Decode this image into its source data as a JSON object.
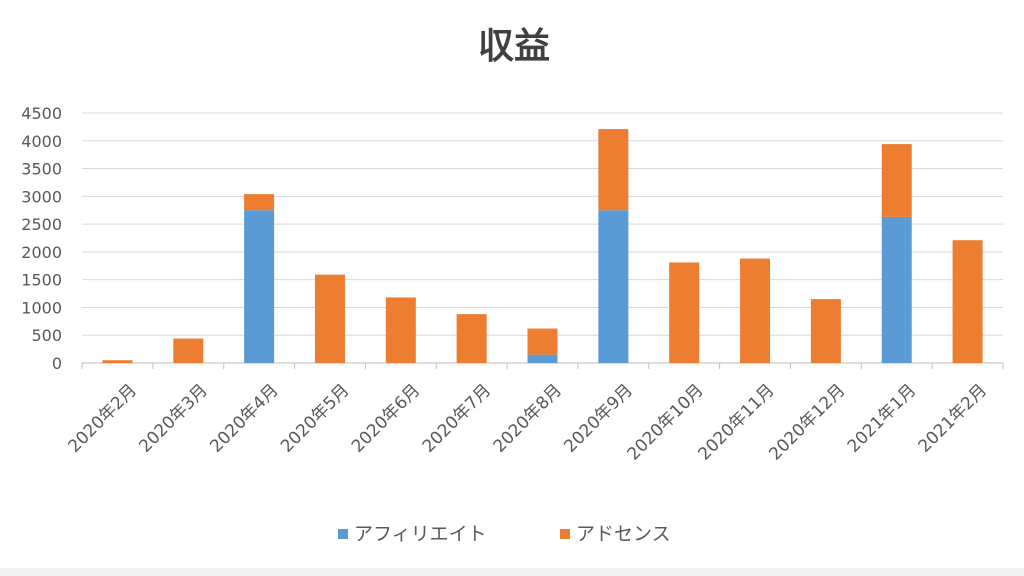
{
  "chart_data": {
    "type": "bar",
    "stacked": true,
    "title": "収益",
    "categories": [
      "2020年2月",
      "2020年3月",
      "2020年4月",
      "2020年5月",
      "2020年6月",
      "2020年7月",
      "2020年8月",
      "2020年9月",
      "2020年10月",
      "2020年11月",
      "2020年12月",
      "2021年1月",
      "2021年2月"
    ],
    "series": [
      {
        "name": "アフィリエイト",
        "color": "#5b9bd5",
        "values": [
          0,
          0,
          2750,
          0,
          0,
          0,
          150,
          2750,
          0,
          0,
          0,
          2630,
          0
        ]
      },
      {
        "name": "アドセンス",
        "color": "#ed7d31",
        "values": [
          50,
          440,
          290,
          1590,
          1180,
          880,
          470,
          1460,
          1810,
          1880,
          1150,
          1310,
          2210
        ]
      }
    ],
    "ylim": [
      0,
      4500
    ],
    "yticks": [
      0,
      500,
      1000,
      1500,
      2000,
      2500,
      3000,
      3500,
      4000,
      4500
    ],
    "grid": true,
    "legend": "bottom"
  }
}
